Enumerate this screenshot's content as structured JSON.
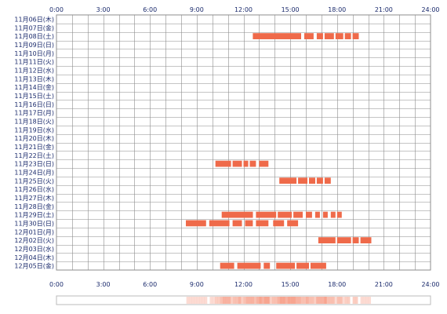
{
  "chart_data": {
    "type": "heatmap",
    "title": "",
    "x_ticks": [
      "0:00",
      "3:00",
      "6:00",
      "9:00",
      "12:00",
      "15:00",
      "18:00",
      "21:00",
      "24:00"
    ],
    "x_range_hours": [
      0,
      24
    ],
    "gridlines": true,
    "grid_minor_step_hours": 1,
    "rows": [
      {
        "label": "11月06日(木)",
        "segments": []
      },
      {
        "label": "11月07日(金)",
        "segments": []
      },
      {
        "label": "11月08日(土)",
        "segments": [
          [
            12.6,
            15.7
          ],
          [
            15.9,
            16.5
          ],
          [
            16.7,
            17.1
          ],
          [
            17.2,
            17.8
          ],
          [
            17.9,
            18.4
          ],
          [
            18.5,
            18.9
          ],
          [
            19.0,
            19.4
          ]
        ]
      },
      {
        "label": "11月09日(日)",
        "segments": []
      },
      {
        "label": "11月10日(月)",
        "segments": []
      },
      {
        "label": "11月11日(火)",
        "segments": []
      },
      {
        "label": "11月12日(水)",
        "segments": []
      },
      {
        "label": "11月13日(木)",
        "segments": []
      },
      {
        "label": "11月14日(金)",
        "segments": []
      },
      {
        "label": "11月15日(土)",
        "segments": []
      },
      {
        "label": "11月16日(日)",
        "segments": []
      },
      {
        "label": "11月17日(月)",
        "segments": []
      },
      {
        "label": "11月18日(火)",
        "segments": []
      },
      {
        "label": "11月19日(水)",
        "segments": []
      },
      {
        "label": "11月20日(木)",
        "segments": []
      },
      {
        "label": "11月21日(金)",
        "segments": []
      },
      {
        "label": "11月22日(土)",
        "segments": []
      },
      {
        "label": "11月23日(日)",
        "segments": [
          [
            10.2,
            11.2
          ],
          [
            11.3,
            11.9
          ],
          [
            12.0,
            12.3
          ],
          [
            12.4,
            12.8
          ],
          [
            13.0,
            13.6
          ]
        ]
      },
      {
        "label": "11月24日(月)",
        "segments": []
      },
      {
        "label": "11月25日(火)",
        "segments": [
          [
            14.3,
            15.4
          ],
          [
            15.5,
            16.1
          ],
          [
            16.2,
            16.6
          ],
          [
            16.7,
            17.1
          ],
          [
            17.2,
            17.6
          ]
        ]
      },
      {
        "label": "11月26日(水)",
        "segments": []
      },
      {
        "label": "11月27日(木)",
        "segments": []
      },
      {
        "label": "11月28日(金)",
        "segments": []
      },
      {
        "label": "11月29日(土)",
        "segments": [
          [
            10.6,
            12.6
          ],
          [
            12.8,
            14.1
          ],
          [
            14.2,
            15.1
          ],
          [
            15.2,
            15.8
          ],
          [
            16.0,
            16.4
          ],
          [
            16.6,
            16.9
          ],
          [
            17.1,
            17.4
          ],
          [
            17.6,
            17.9
          ],
          [
            18.0,
            18.3
          ]
        ]
      },
      {
        "label": "11月30日(日)",
        "segments": [
          [
            8.3,
            9.6
          ],
          [
            9.8,
            11.1
          ],
          [
            11.3,
            11.9
          ],
          [
            12.1,
            12.6
          ],
          [
            12.8,
            13.6
          ],
          [
            13.9,
            14.6
          ],
          [
            14.8,
            15.5
          ]
        ]
      },
      {
        "label": "12月01日(月)",
        "segments": []
      },
      {
        "label": "12月02日(火)",
        "segments": [
          [
            16.8,
            17.9
          ],
          [
            18.0,
            18.9
          ],
          [
            19.0,
            19.4
          ],
          [
            19.5,
            20.2
          ]
        ]
      },
      {
        "label": "12月03日(水)",
        "segments": []
      },
      {
        "label": "12月04日(木)",
        "segments": []
      },
      {
        "label": "12月05日(金)",
        "segments": [
          [
            10.5,
            11.4
          ],
          [
            11.6,
            13.1
          ],
          [
            13.3,
            13.7
          ],
          [
            14.1,
            15.3
          ],
          [
            15.4,
            16.2
          ],
          [
            16.3,
            17.3
          ]
        ]
      }
    ]
  },
  "colors": {
    "bar": "#ef6a4a",
    "grid": "#8c8c8c",
    "axis_text": "#1a2a6c",
    "summary_strip": "#f7a590",
    "summary_border": "#bbbbbb"
  }
}
